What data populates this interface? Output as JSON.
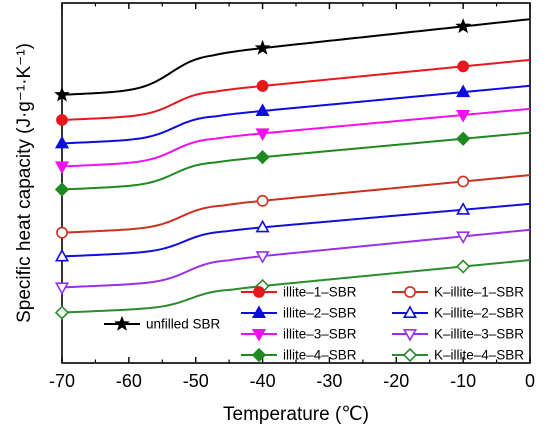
{
  "chart_data": {
    "type": "line",
    "title": "",
    "xlabel": "Temperature (℃)",
    "ylabel": "Specific heat capacity (J·g⁻¹·K⁻¹)",
    "xlim": [
      -70,
      0
    ],
    "x_ticks": [
      -70,
      -60,
      -50,
      -40,
      -30,
      -20,
      -10,
      0
    ],
    "x_tick_labels": [
      "-70",
      "-60",
      "-50",
      "-40",
      "-30",
      "-20",
      "-10",
      "0"
    ],
    "grid": false,
    "legend_position": "bottom-right",
    "y_ticks_shown": false,
    "series": [
      {
        "name": "unfilled SBR",
        "color": "#000000",
        "marker": "star",
        "filled": true,
        "marker_x": [
          -70,
          -40,
          -10
        ],
        "low": 0.745,
        "high": 0.86,
        "low_slope": 0.0008,
        "high_slope": 0.0014,
        "tg": -53.5,
        "width": 2.2,
        "end": 0.955
      },
      {
        "name": "illite–1–SBR",
        "color": "#e8171d",
        "marker": "circle",
        "filled": true,
        "marker_x": [
          -70,
          -40,
          -10
        ],
        "low": 0.675,
        "high": 0.757,
        "low_slope": 0.0008,
        "high_slope": 0.0012,
        "tg": -53.0,
        "width": 2.0,
        "end": 0.842
      },
      {
        "name": "K–illite–1–SBR",
        "color": "#c8321e",
        "marker": "circle",
        "filled": false,
        "marker_x": [
          -70,
          -40,
          -10
        ],
        "low": 0.362,
        "high": 0.44,
        "low_slope": 0.0008,
        "high_slope": 0.0012,
        "tg": -52.0,
        "width": 2.0,
        "end": 0.522
      },
      {
        "name": "illite–2–SBR",
        "color": "#0d0dde",
        "marker": "triangle",
        "filled": true,
        "marker_x": [
          -70,
          -40,
          -10
        ],
        "low": 0.61,
        "high": 0.688,
        "low_slope": 0.0008,
        "high_slope": 0.0012,
        "tg": -53.0,
        "width": 2.0,
        "end": 0.77
      },
      {
        "name": "K–illite–2–SBR",
        "color": "#1010d8",
        "marker": "triangle",
        "filled": false,
        "marker_x": [
          -70,
          -40,
          -10
        ],
        "low": 0.296,
        "high": 0.368,
        "low_slope": 0.0008,
        "high_slope": 0.0012,
        "tg": -51.5,
        "width": 2.0,
        "end": 0.442
      },
      {
        "name": "illite–3–SBR",
        "color": "#f010f0",
        "marker": "triangle-down",
        "filled": true,
        "marker_x": [
          -70,
          -40,
          -10
        ],
        "low": 0.546,
        "high": 0.626,
        "low_slope": 0.0008,
        "high_slope": 0.0012,
        "tg": -53.0,
        "width": 2.0,
        "end": 0.706
      },
      {
        "name": "K–illite–3–SBR",
        "color": "#9a30e8",
        "marker": "triangle-down",
        "filled": false,
        "marker_x": [
          -70,
          -40,
          -10
        ],
        "low": 0.21,
        "high": 0.288,
        "low_slope": 0.0008,
        "high_slope": 0.0012,
        "tg": -51.0,
        "width": 2.0,
        "end": 0.37
      },
      {
        "name": "illite–4–SBR",
        "color": "#1f8a1f",
        "marker": "diamond",
        "filled": true,
        "marker_x": [
          -70,
          -40,
          -10
        ],
        "low": 0.482,
        "high": 0.56,
        "low_slope": 0.0008,
        "high_slope": 0.0012,
        "tg": -53.0,
        "width": 2.0,
        "end": 0.64
      },
      {
        "name": "K–illite–4–SBR",
        "color": "#2e8b2e",
        "marker": "diamond",
        "filled": false,
        "marker_x": [
          -70,
          -40,
          -10
        ],
        "low": 0.14,
        "high": 0.206,
        "low_slope": 0.0008,
        "high_slope": 0.0012,
        "tg": -50.5,
        "width": 2.0,
        "end": 0.286
      }
    ]
  }
}
